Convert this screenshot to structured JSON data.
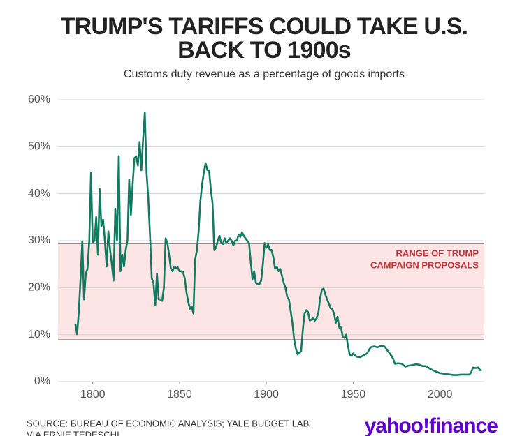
{
  "chart_data": {
    "type": "line",
    "title": [
      "TRUMP'S TARIFFS COULD TAKE U.S.",
      "BACK TO 1900s"
    ],
    "subtitle": "Customs duty revenue as a percentage of goods imports",
    "x": [
      1790,
      1791,
      1792,
      1793,
      1794,
      1795,
      1796,
      1797,
      1798,
      1799,
      1800,
      1801,
      1802,
      1803,
      1804,
      1805,
      1806,
      1807,
      1808,
      1809,
      1810,
      1811,
      1812,
      1813,
      1814,
      1815,
      1816,
      1817,
      1818,
      1819,
      1820,
      1821,
      1822,
      1823,
      1824,
      1825,
      1826,
      1827,
      1828,
      1829,
      1830,
      1831,
      1832,
      1833,
      1834,
      1835,
      1836,
      1837,
      1838,
      1839,
      1840,
      1841,
      1842,
      1843,
      1844,
      1845,
      1846,
      1847,
      1848,
      1849,
      1850,
      1851,
      1852,
      1853,
      1854,
      1855,
      1856,
      1857,
      1858,
      1859,
      1860,
      1861,
      1862,
      1863,
      1864,
      1865,
      1866,
      1867,
      1868,
      1869,
      1870,
      1871,
      1872,
      1873,
      1874,
      1875,
      1876,
      1877,
      1878,
      1879,
      1880,
      1881,
      1882,
      1883,
      1884,
      1885,
      1886,
      1887,
      1888,
      1889,
      1890,
      1891,
      1892,
      1893,
      1894,
      1895,
      1896,
      1897,
      1898,
      1899,
      1900,
      1901,
      1902,
      1903,
      1904,
      1905,
      1906,
      1907,
      1908,
      1909,
      1910,
      1911,
      1912,
      1913,
      1914,
      1915,
      1916,
      1917,
      1918,
      1919,
      1920,
      1921,
      1922,
      1923,
      1924,
      1925,
      1926,
      1927,
      1928,
      1929,
      1930,
      1931,
      1932,
      1933,
      1934,
      1935,
      1936,
      1937,
      1938,
      1939,
      1940,
      1941,
      1942,
      1943,
      1944,
      1945,
      1946,
      1947,
      1948,
      1949,
      1950,
      1952,
      1954,
      1956,
      1958,
      1960,
      1962,
      1964,
      1966,
      1968,
      1970,
      1972,
      1973,
      1974,
      1976,
      1978,
      1980,
      1982,
      1984,
      1986,
      1988,
      1990,
      1992,
      1994,
      1996,
      1998,
      2000,
      2002,
      2004,
      2006,
      2008,
      2010,
      2012,
      2014,
      2016,
      2017,
      2018,
      2019,
      2020,
      2021,
      2022,
      2023,
      2024
    ],
    "values": [
      12.3,
      10.1,
      15,
      22,
      29.9,
      17.5,
      23,
      24,
      30,
      44.4,
      29.6,
      30,
      35,
      27,
      41,
      33,
      34.5,
      30,
      24.5,
      32,
      28,
      25,
      21.5,
      36.8,
      30,
      48,
      23.5,
      27,
      24.5,
      28,
      30,
      43,
      35.5,
      42,
      47.5,
      48,
      46,
      51,
      45,
      51.5,
      57.3,
      44.5,
      39,
      31,
      22,
      21,
      16.2,
      23,
      17.5,
      17.5,
      17.2,
      20,
      30.5,
      29.5,
      27,
      24,
      23.5,
      24.5,
      24.2,
      24.3,
      23.5,
      23.5,
      23.3,
      22,
      19,
      17,
      15.5,
      16,
      14.5,
      26,
      28,
      32,
      38.5,
      42,
      44.5,
      46.5,
      45,
      45,
      41,
      38,
      28,
      28.5,
      30,
      31,
      29.5,
      29.3,
      30.5,
      29.5,
      30,
      30.5,
      30,
      29,
      30,
      30,
      31.2,
      30.8,
      31.8,
      31,
      30.5,
      30,
      29.5,
      25.5,
      21.8,
      23.5,
      21,
      20.7,
      20.8,
      21.5,
      25,
      29.5,
      28.5,
      29.2,
      28,
      28,
      26.5,
      24,
      24.5,
      23.5,
      24,
      22.5,
      21,
      20,
      18,
      17.5,
      15,
      12.5,
      9,
      7,
      5.8,
      6.2,
      6.4,
      11,
      14.5,
      15.2,
      14.8,
      13,
      13.2,
      13.6,
      13,
      13.5,
      14.8,
      17.8,
      19.6,
      19.8,
      18.5,
      17.5,
      16.6,
      15.6,
      15.4,
      14.5,
      12.5,
      13.8,
      11.5,
      11.5,
      9.5,
      9.3,
      10,
      7.6,
      5.7,
      5.5,
      6,
      5.3,
      5.2,
      5.6,
      6,
      7.3,
      7.5,
      7.3,
      7.6,
      7.5,
      6.5,
      5.5,
      4.9,
      3.8,
      3.9,
      3.8,
      3.2,
      3.4,
      3.5,
      3.7,
      3.6,
      3.3,
      3.3,
      2.8,
      2.4,
      2.1,
      1.8,
      1.7,
      1.6,
      1.5,
      1.4,
      1.4,
      1.5,
      1.5,
      1.5,
      1.5,
      2,
      3,
      2.9,
      2.9,
      3,
      2.5,
      2.3
    ],
    "color": "#137a62",
    "xlim": [
      1780,
      2025.5
    ],
    "xticks": [
      1800,
      1850,
      1900,
      1950,
      2000
    ],
    "ylim": [
      0,
      60
    ],
    "yticks": [
      {
        "value": 0,
        "label": "0%"
      },
      {
        "value": 10,
        "label": "10%"
      },
      {
        "value": 20,
        "label": "20%"
      },
      {
        "value": 30,
        "label": "30%"
      },
      {
        "value": 40,
        "label": "40%"
      },
      {
        "value": 50,
        "label": "50%"
      },
      {
        "value": 60,
        "label": "60%"
      }
    ],
    "grid": true,
    "band": {
      "range": [
        8.9,
        29.4
      ],
      "color": "#fde5e5",
      "label": [
        "RANGE OF TRUMP",
        "CAMPAIGN PROPOSALS"
      ],
      "label_color": "#c43239"
    },
    "source": [
      "SOURCE: BUREAU OF ECONOMIC ANALYSIS; YALE BUDGET LAB",
      "VIA ERNIE TEDESCHI"
    ],
    "logo": "yahoo!finance"
  }
}
